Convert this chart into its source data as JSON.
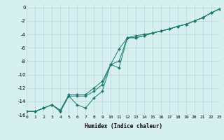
{
  "xlabel": "Humidex (Indice chaleur)",
  "background_color": "#d6f0f0",
  "grid_color": "#b8d8d8",
  "line_color": "#1a7a6e",
  "xlim": [
    0,
    23
  ],
  "ylim": [
    -16,
    0.5
  ],
  "xticks": [
    0,
    1,
    2,
    3,
    4,
    5,
    6,
    7,
    8,
    9,
    10,
    11,
    12,
    13,
    14,
    15,
    16,
    17,
    18,
    19,
    20,
    21,
    22,
    23
  ],
  "yticks": [
    0,
    -2,
    -4,
    -6,
    -8,
    -10,
    -12,
    -14,
    -16
  ],
  "line1_x": [
    0,
    1,
    2,
    3,
    4,
    5,
    6,
    7,
    8,
    9,
    10,
    11,
    12,
    13,
    14,
    15,
    16,
    17,
    18,
    19,
    20,
    21,
    22,
    23
  ],
  "line1_y": [
    -15.5,
    -15.5,
    -15.0,
    -14.5,
    -15.5,
    -13.2,
    -14.5,
    -15.0,
    -13.5,
    -12.5,
    -8.5,
    -9.0,
    -4.5,
    -4.5,
    -4.2,
    -3.8,
    -3.5,
    -3.2,
    -2.8,
    -2.5,
    -2.0,
    -1.5,
    -0.8,
    -0.2
  ],
  "line2_x": [
    0,
    1,
    2,
    3,
    4,
    5,
    6,
    7,
    8,
    9,
    10,
    11,
    12,
    13,
    14,
    15,
    16,
    17,
    18,
    19,
    20,
    21,
    22,
    23
  ],
  "line2_y": [
    -15.5,
    -15.5,
    -15.0,
    -14.5,
    -15.5,
    -13.2,
    -13.2,
    -13.2,
    -12.5,
    -11.5,
    -8.5,
    -6.2,
    -4.5,
    -4.5,
    -4.2,
    -3.8,
    -3.5,
    -3.2,
    -2.8,
    -2.5,
    -2.0,
    -1.5,
    -0.8,
    -0.2
  ],
  "line3_x": [
    0,
    1,
    2,
    3,
    4,
    5,
    6,
    7,
    8,
    9,
    10,
    11,
    12,
    13,
    14,
    15,
    16,
    17,
    18,
    19,
    20,
    21,
    22,
    23
  ],
  "line3_y": [
    -15.5,
    -15.5,
    -15.0,
    -14.5,
    -15.3,
    -13.0,
    -13.0,
    -13.0,
    -12.0,
    -11.0,
    -8.5,
    -8.0,
    -4.5,
    -4.2,
    -4.0,
    -3.8,
    -3.5,
    -3.2,
    -2.8,
    -2.5,
    -2.0,
    -1.5,
    -0.8,
    -0.2
  ]
}
